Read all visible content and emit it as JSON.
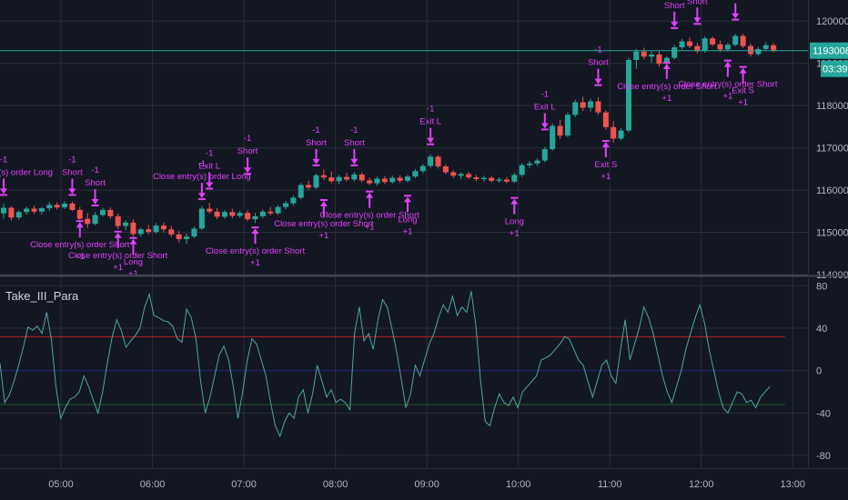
{
  "indicator": {
    "title": "Take_III_Para"
  },
  "price_badge": {
    "value": "1193008",
    "countdown": "03:39",
    "color": "#26a69a"
  },
  "colors": {
    "up": "#26a69a",
    "down": "#ef5350",
    "signal": "#e040fb",
    "osc": "#4fa3a3",
    "upper": "#b71c1c",
    "mid": "#1a237e",
    "lower": "#1b5e20"
  },
  "chart_data": [
    {
      "type": "candlestick",
      "y_ticks": [
        1140000,
        1150000,
        1160000,
        1170000,
        1180000,
        1190000,
        1200000
      ],
      "y_tick_labels": [
        "1140000",
        "1150000",
        "1160000",
        "1170000",
        "1180000",
        "1190000",
        "1200000"
      ],
      "ylim": [
        1140000,
        1205000
      ],
      "x_ticks": [
        "05:00",
        "06:00",
        "07:00",
        "08:00",
        "09:00",
        "10:00",
        "11:00",
        "12:00",
        "13:00"
      ],
      "xlim": [
        "04:20",
        "13:10"
      ],
      "grid": true,
      "last_price": 1193008,
      "candles": [
        [
          "04:20",
          1154500,
          1156800,
          1153200,
          1155800
        ],
        [
          "04:25",
          1155800,
          1156200,
          1152800,
          1153500
        ],
        [
          "04:30",
          1153500,
          1155200,
          1152900,
          1154800
        ],
        [
          "04:35",
          1154800,
          1156100,
          1154100,
          1155600
        ],
        [
          "04:40",
          1155600,
          1156300,
          1154300,
          1154900
        ],
        [
          "04:45",
          1154900,
          1156000,
          1154200,
          1155700
        ],
        [
          "04:50",
          1155700,
          1157200,
          1155100,
          1156500
        ],
        [
          "04:55",
          1156500,
          1157100,
          1155400,
          1155900
        ],
        [
          "05:00",
          1155900,
          1157400,
          1155500,
          1156800
        ],
        [
          "05:05",
          1156800,
          1157300,
          1155000,
          1155300
        ],
        [
          "05:10",
          1155300,
          1156000,
          1152800,
          1153200
        ],
        [
          "05:15",
          1153200,
          1154600,
          1151000,
          1152000
        ],
        [
          "05:20",
          1152000,
          1154800,
          1151700,
          1154100
        ],
        [
          "05:25",
          1154100,
          1155800,
          1153700,
          1155300
        ],
        [
          "05:30",
          1155300,
          1155900,
          1153200,
          1153800
        ],
        [
          "05:35",
          1153800,
          1154400,
          1150800,
          1151500
        ],
        [
          "05:40",
          1151500,
          1152900,
          1150500,
          1152300
        ],
        [
          "05:45",
          1152300,
          1153100,
          1148800,
          1149600
        ],
        [
          "05:50",
          1149600,
          1151200,
          1148900,
          1150700
        ],
        [
          "05:55",
          1150700,
          1151800,
          1149500,
          1150100
        ],
        [
          "06:00",
          1150100,
          1152200,
          1149700,
          1151600
        ],
        [
          "06:05",
          1151600,
          1152300,
          1150000,
          1150700
        ],
        [
          "06:10",
          1150700,
          1151500,
          1148900,
          1149500
        ],
        [
          "06:15",
          1149500,
          1150300,
          1147600,
          1148400
        ],
        [
          "06:20",
          1148400,
          1149700,
          1147300,
          1149000
        ],
        [
          "06:25",
          1149000,
          1151400,
          1148600,
          1150900
        ],
        [
          "06:30",
          1150900,
          1156200,
          1150500,
          1155600
        ],
        [
          "06:35",
          1155600,
          1157000,
          1154400,
          1154900
        ],
        [
          "06:40",
          1154900,
          1155700,
          1153100,
          1153700
        ],
        [
          "06:45",
          1153700,
          1155300,
          1153200,
          1154800
        ],
        [
          "06:50",
          1154800,
          1155600,
          1153300,
          1153900
        ],
        [
          "06:55",
          1153900,
          1155100,
          1153400,
          1154600
        ],
        [
          "07:00",
          1154600,
          1155200,
          1152600,
          1153100
        ],
        [
          "07:05",
          1153100,
          1154600,
          1152200,
          1153800
        ],
        [
          "07:10",
          1153800,
          1155400,
          1153300,
          1154900
        ],
        [
          "07:15",
          1154900,
          1156000,
          1154000,
          1154500
        ],
        [
          "07:20",
          1154500,
          1156500,
          1154100,
          1156000
        ],
        [
          "07:25",
          1156000,
          1157400,
          1155500,
          1156900
        ],
        [
          "07:30",
          1156900,
          1158800,
          1156400,
          1158200
        ],
        [
          "07:35",
          1158200,
          1161700,
          1157800,
          1161200
        ],
        [
          "07:40",
          1161200,
          1162200,
          1160100,
          1160600
        ],
        [
          "07:45",
          1160600,
          1163900,
          1160200,
          1163500
        ],
        [
          "07:50",
          1163500,
          1164900,
          1162400,
          1163000
        ],
        [
          "07:55",
          1163000,
          1164400,
          1161600,
          1162100
        ],
        [
          "08:00",
          1162100,
          1163600,
          1161400,
          1163100
        ],
        [
          "08:05",
          1163100,
          1164100,
          1162000,
          1162500
        ],
        [
          "08:10",
          1162500,
          1164300,
          1162000,
          1163700
        ],
        [
          "08:15",
          1163700,
          1164200,
          1161800,
          1162300
        ],
        [
          "08:20",
          1162300,
          1163000,
          1161100,
          1161600
        ],
        [
          "08:25",
          1161600,
          1163200,
          1161000,
          1162700
        ],
        [
          "08:30",
          1162700,
          1163300,
          1161400,
          1161900
        ],
        [
          "08:35",
          1161900,
          1163400,
          1161500,
          1162900
        ],
        [
          "08:40",
          1162900,
          1163500,
          1161700,
          1162200
        ],
        [
          "08:45",
          1162200,
          1163600,
          1161800,
          1163200
        ],
        [
          "08:50",
          1163200,
          1165000,
          1162800,
          1164500
        ],
        [
          "08:55",
          1164500,
          1166200,
          1164000,
          1165700
        ],
        [
          "09:00",
          1165700,
          1168500,
          1165200,
          1167900
        ],
        [
          "09:05",
          1167900,
          1168300,
          1165100,
          1165600
        ],
        [
          "09:10",
          1165600,
          1166100,
          1163700,
          1164200
        ],
        [
          "09:15",
          1164200,
          1164700,
          1162900,
          1163400
        ],
        [
          "09:20",
          1163400,
          1164200,
          1162600,
          1163800
        ],
        [
          "09:25",
          1163800,
          1164300,
          1162600,
          1163000
        ],
        [
          "09:30",
          1163000,
          1163600,
          1162100,
          1162600
        ],
        [
          "09:35",
          1162600,
          1163400,
          1162000,
          1162900
        ],
        [
          "09:40",
          1162900,
          1163300,
          1161800,
          1162200
        ],
        [
          "09:45",
          1162200,
          1163000,
          1161700,
          1162500
        ],
        [
          "09:50",
          1162500,
          1163100,
          1161600,
          1162000
        ],
        [
          "09:55",
          1162000,
          1164100,
          1161700,
          1163600
        ],
        [
          "10:00",
          1163600,
          1166400,
          1163100,
          1165900
        ],
        [
          "10:05",
          1165900,
          1166900,
          1165200,
          1166300
        ],
        [
          "10:10",
          1166300,
          1167500,
          1165700,
          1167000
        ],
        [
          "10:15",
          1167000,
          1170200,
          1166600,
          1169700
        ],
        [
          "10:20",
          1169700,
          1175800,
          1169300,
          1175200
        ],
        [
          "10:25",
          1175200,
          1176600,
          1172100,
          1172900
        ],
        [
          "10:30",
          1172900,
          1178400,
          1172500,
          1177800
        ],
        [
          "10:35",
          1177800,
          1181400,
          1177300,
          1180800
        ],
        [
          "10:40",
          1180800,
          1182100,
          1178700,
          1179500
        ],
        [
          "10:45",
          1179500,
          1181600,
          1178600,
          1181000
        ],
        [
          "10:50",
          1181000,
          1182000,
          1177800,
          1178400
        ],
        [
          "10:55",
          1178400,
          1178900,
          1174300,
          1174900
        ],
        [
          "11:00",
          1174900,
          1176300,
          1171200,
          1172200
        ],
        [
          "11:05",
          1172200,
          1174700,
          1171800,
          1174100
        ],
        [
          "11:10",
          1174100,
          1191400,
          1173700,
          1190800
        ],
        [
          "11:15",
          1190800,
          1193400,
          1188700,
          1192800
        ],
        [
          "11:20",
          1192800,
          1193700,
          1190900,
          1191600
        ],
        [
          "11:25",
          1191600,
          1192800,
          1190100,
          1192100
        ],
        [
          "11:30",
          1192100,
          1192900,
          1189200,
          1189900
        ],
        [
          "11:35",
          1189900,
          1191800,
          1189400,
          1191300
        ],
        [
          "11:40",
          1191300,
          1194400,
          1190900,
          1193800
        ],
        [
          "11:45",
          1193800,
          1195800,
          1193300,
          1195200
        ],
        [
          "11:50",
          1195200,
          1196100,
          1193600,
          1194100
        ],
        [
          "11:55",
          1194100,
          1194900,
          1192300,
          1192900
        ],
        [
          "12:00",
          1192900,
          1196400,
          1192500,
          1195900
        ],
        [
          "12:05",
          1195900,
          1196400,
          1194000,
          1194500
        ],
        [
          "12:10",
          1194500,
          1195400,
          1192700,
          1193300
        ],
        [
          "12:15",
          1193300,
          1194900,
          1192800,
          1194400
        ],
        [
          "12:20",
          1194400,
          1197000,
          1194000,
          1196500
        ],
        [
          "12:25",
          1196500,
          1197000,
          1193600,
          1194100
        ],
        [
          "12:30",
          1194100,
          1194700,
          1191600,
          1192200
        ],
        [
          "12:35",
          1192200,
          1193900,
          1191800,
          1193400
        ],
        [
          "12:40",
          1193400,
          1195000,
          1192900,
          1194300
        ],
        [
          "12:45",
          1194300,
          1194800,
          1192600,
          1193008
        ]
      ],
      "annotations": [
        {
          "t": "04:20",
          "y": 1161000,
          "kind": "entry-short",
          "label": "Close entry(s) order Long",
          "qty": "-1"
        },
        {
          "t": "05:05",
          "y": 1161000,
          "kind": "entry-short",
          "label": "Short",
          "qty": "-1"
        },
        {
          "t": "05:20",
          "y": 1158500,
          "kind": "entry-short",
          "label": "Short",
          "qty": "-1"
        },
        {
          "t": "05:10",
          "y": 1150500,
          "kind": "entry-long",
          "label": "Close entry(s) order Short",
          "qty": "+1"
        },
        {
          "t": "05:35",
          "y": 1148000,
          "kind": "entry-long",
          "label": "Close entry(s) order Short",
          "qty": "+1"
        },
        {
          "t": "05:45",
          "y": 1146500,
          "kind": "entry-long",
          "label": "Long",
          "qty": "+1"
        },
        {
          "t": "06:30",
          "y": 1160000,
          "kind": "entry-short",
          "label": "Close entry(s) order Long",
          "qty": "-1"
        },
        {
          "t": "06:35",
          "y": 1162500,
          "kind": "entry-short",
          "label": "Exit L",
          "qty": "-1"
        },
        {
          "t": "07:00",
          "y": 1166000,
          "kind": "entry-short",
          "label": "Short",
          "qty": "-1"
        },
        {
          "t": "07:05",
          "y": 1149000,
          "kind": "entry-long",
          "label": "Close entry(s) order Short",
          "qty": "+1"
        },
        {
          "t": "07:45",
          "y": 1168000,
          "kind": "entry-short",
          "label": "Short",
          "qty": "-1"
        },
        {
          "t": "07:50",
          "y": 1155500,
          "kind": "entry-long",
          "label": "Close entry(s) order Short",
          "qty": "+1"
        },
        {
          "t": "08:10",
          "y": 1168000,
          "kind": "entry-short",
          "label": "Short",
          "qty": "-1"
        },
        {
          "t": "08:20",
          "y": 1157500,
          "kind": "entry-long",
          "label": "Close entry(s) order Short",
          "qty": "+1"
        },
        {
          "t": "08:45",
          "y": 1156500,
          "kind": "entry-long",
          "label": "Long",
          "qty": "+1"
        },
        {
          "t": "09:00",
          "y": 1173000,
          "kind": "entry-short",
          "label": "Exit L",
          "qty": "-1"
        },
        {
          "t": "09:55",
          "y": 1156000,
          "kind": "entry-long",
          "label": "Long",
          "qty": "+1"
        },
        {
          "t": "10:15",
          "y": 1176500,
          "kind": "entry-short",
          "label": "Exit L",
          "qty": "-1"
        },
        {
          "t": "10:50",
          "y": 1187000,
          "kind": "entry-short",
          "label": "Short",
          "qty": "-1"
        },
        {
          "t": "10:55",
          "y": 1169500,
          "kind": "entry-long",
          "label": "Exit S",
          "qty": "+1"
        },
        {
          "t": "11:40",
          "y": 1200500,
          "kind": "entry-short",
          "label": "Short",
          "qty": "-1"
        },
        {
          "t": "11:55",
          "y": 1201500,
          "kind": "entry-short",
          "label": "Short",
          "qty": "-1"
        },
        {
          "t": "11:35",
          "y": 1188000,
          "kind": "entry-long",
          "label": "Close entry(s) order Short",
          "qty": "+1"
        },
        {
          "t": "12:20",
          "y": 1202500,
          "kind": "entry-short",
          "label": "",
          "qty": ""
        },
        {
          "t": "12:15",
          "y": 1188500,
          "kind": "entry-long",
          "label": "Close entry(s) order Short",
          "qty": "+1"
        },
        {
          "t": "12:25",
          "y": 1187000,
          "kind": "entry-long",
          "label": "Exit S",
          "qty": "+1"
        }
      ]
    },
    {
      "type": "line",
      "name": "Take_III_Para",
      "y_ticks": [
        -80,
        -40,
        0,
        40,
        80
      ],
      "y_tick_labels": [
        "-80",
        "-40",
        "0",
        "40",
        "80"
      ],
      "ylim": [
        -92,
        88
      ],
      "xlim": [
        "04:20",
        "13:10"
      ],
      "x_start": "04:20",
      "x_step_minutes": 5,
      "hlines": [
        32,
        0,
        -32
      ],
      "values": [
        7,
        -30,
        -23,
        -10,
        5,
        22,
        41,
        38,
        42,
        35,
        55,
        30,
        -15,
        -45,
        -35,
        -27,
        -25,
        -20,
        -5,
        -15,
        -28,
        -40,
        -20,
        7,
        31,
        48,
        38,
        22,
        28,
        33,
        40,
        60,
        72,
        52,
        50,
        47,
        46,
        42,
        30,
        27,
        58,
        50,
        30,
        -10,
        -40,
        -25,
        -5,
        15,
        23,
        10,
        -15,
        -45,
        -20,
        10,
        30,
        25,
        10,
        -5,
        -30,
        -52,
        -62,
        -48,
        -40,
        -45,
        -25,
        -18,
        -40,
        -22,
        5,
        -10,
        -25,
        -18,
        -30,
        -27,
        -30,
        -37,
        35,
        60,
        28,
        35,
        20,
        48,
        67,
        60,
        40,
        18,
        -8,
        -35,
        -22,
        5,
        -5,
        10,
        25,
        35,
        50,
        62,
        55,
        70,
        52,
        60,
        55,
        75,
        42,
        -10,
        -48,
        -52,
        -35,
        -22,
        -30,
        -33,
        -25,
        -35,
        -20,
        -15,
        -10,
        -5,
        10,
        12,
        15,
        20,
        25,
        32,
        30,
        20,
        10,
        5,
        -10,
        -25,
        -10,
        5,
        10,
        -5,
        -12,
        20,
        48,
        10,
        25,
        40,
        60,
        50,
        35,
        15,
        -5,
        -20,
        -30,
        -15,
        0,
        20,
        35,
        50,
        62,
        45,
        20,
        0,
        -20,
        -35,
        -40,
        -30,
        -20,
        -22,
        -30,
        -28,
        -35,
        -25,
        -20,
        -15
      ]
    }
  ]
}
